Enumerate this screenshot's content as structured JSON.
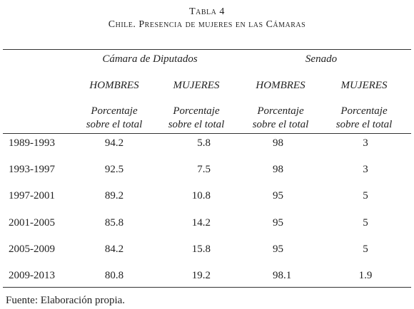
{
  "header": {
    "title": "Tabla 4",
    "subtitle": "Chile. Presencia de mujeres en las Cámaras"
  },
  "table": {
    "groups": [
      "Cámara de Diputados",
      "Senado"
    ],
    "columns": [
      {
        "name": "HOMBRES",
        "sub": [
          "Porcentaje",
          "sobre el total"
        ]
      },
      {
        "name": "MUJERES",
        "sub": [
          "Porcentaje",
          "sobre el total"
        ]
      },
      {
        "name": "HOMBRES",
        "sub": [
          "Porcentaje",
          "sobre el total"
        ]
      },
      {
        "name": "MUJERES",
        "sub": [
          "Porcentaje",
          "sobre el total"
        ]
      }
    ],
    "rows": [
      [
        "1989-1993",
        94.2,
        5.8,
        98,
        3
      ],
      [
        "1993-1997",
        92.5,
        7.5,
        98,
        3
      ],
      [
        "1997-2001",
        89.2,
        10.8,
        95,
        5
      ],
      [
        "2001-2005",
        85.8,
        14.2,
        95,
        5
      ],
      [
        "2005-2009",
        84.2,
        15.8,
        95,
        5
      ],
      [
        "2009-2013",
        80.8,
        19.2,
        98.1,
        1.9
      ]
    ]
  },
  "footer": "Fuente: Elaboración propia."
}
